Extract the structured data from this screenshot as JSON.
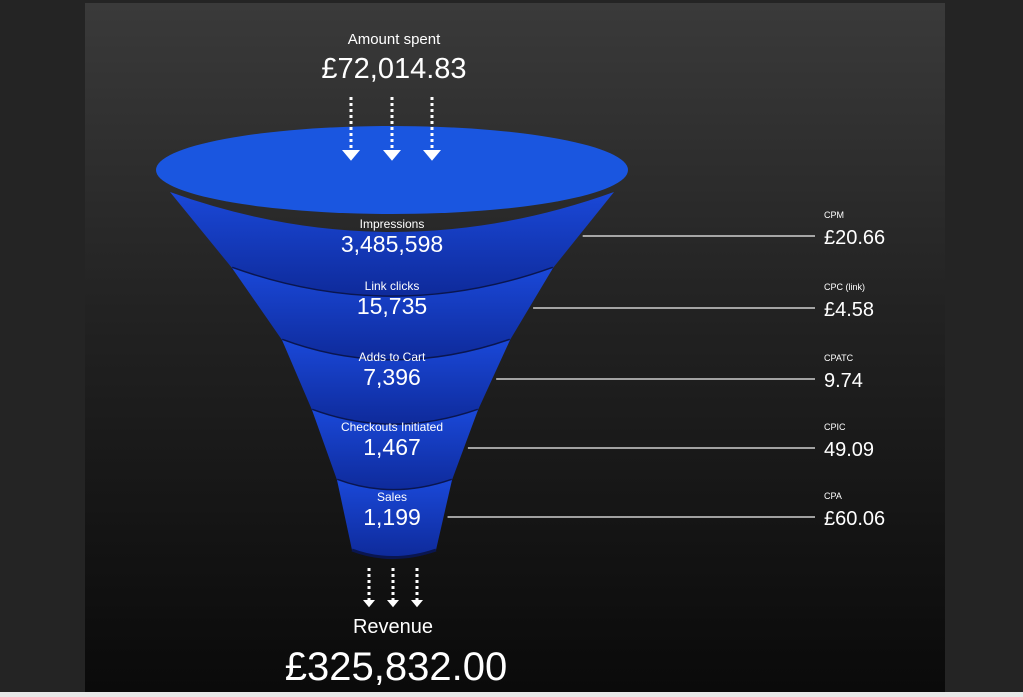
{
  "top": {
    "label": "Amount spent",
    "value": "£72,014.83"
  },
  "stages": [
    {
      "label": "Impressions",
      "value": "3,485,598",
      "metric_label": "CPM",
      "metric_value": "£20.66"
    },
    {
      "label": "Link clicks",
      "value": "15,735",
      "metric_label": "CPC (link)",
      "metric_value": "£4.58"
    },
    {
      "label": "Adds to Cart",
      "value": "7,396",
      "metric_label": "CPATC",
      "metric_value": "9.74"
    },
    {
      "label": "Checkouts Initiated",
      "value": "1,467",
      "metric_label": "CPIC",
      "metric_value": "49.09"
    },
    {
      "label": "Sales",
      "value": "1,199",
      "metric_label": "CPA",
      "metric_value": "£60.06"
    }
  ],
  "bottom": {
    "label": "Revenue",
    "value": "£325,832.00"
  },
  "colors": {
    "funnel_top": "#1a56e0",
    "funnel_band": "#1438c0",
    "funnel_dark": "#0b1f80"
  }
}
